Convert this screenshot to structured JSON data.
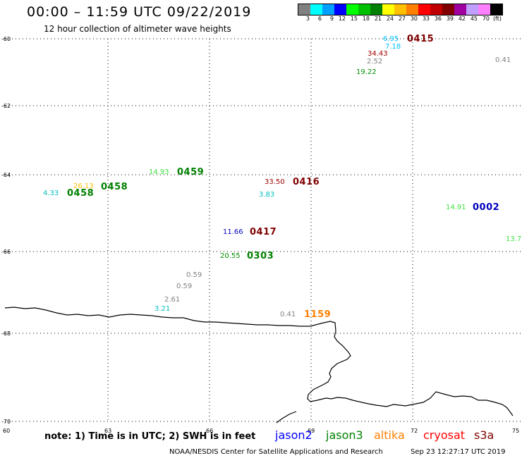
{
  "header": {
    "title": "00:00 – 11:59 UTC 09/22/2019",
    "subtitle": "12 hour collection of altimeter wave heights"
  },
  "colorbar": {
    "colors": [
      "#808080",
      "#00ffff",
      "#00a0ff",
      "#0000ff",
      "#00ff00",
      "#00c000",
      "#008000",
      "#ffff00",
      "#ffc000",
      "#ff8000",
      "#ff0000",
      "#c00000",
      "#800000",
      "#a000a0",
      "#c0a0ff",
      "#ff80ff",
      "#000000"
    ],
    "labels": [
      "3",
      "6",
      "9",
      "12",
      "15",
      "18",
      "21",
      "24",
      "27",
      "30",
      "33",
      "36",
      "39",
      "42",
      "45",
      "70",
      "(ft)"
    ]
  },
  "axes": {
    "y_labels": [
      "-60",
      "-62",
      "-64",
      "-66",
      "-68",
      "-70"
    ],
    "x_labels": [
      "60",
      "63",
      "66",
      "69",
      "72",
      "75"
    ]
  },
  "observations": [
    {
      "text": "6.95",
      "color": "#00c0ff",
      "kind": "val"
    },
    {
      "text": "0415",
      "color": "#800000",
      "kind": "pass"
    },
    {
      "text": "7.18",
      "color": "#00c0ff",
      "kind": "val"
    },
    {
      "text": "34.43",
      "color": "#a00000",
      "kind": "val"
    },
    {
      "text": "2.52",
      "color": "#808080",
      "kind": "val"
    },
    {
      "text": "0.41",
      "color": "#808080",
      "kind": "val"
    },
    {
      "text": "19.22",
      "color": "#009000",
      "kind": "val"
    },
    {
      "text": "14.93",
      "color": "#40e040",
      "kind": "val"
    },
    {
      "text": "0459",
      "color": "#008000",
      "kind": "pass"
    },
    {
      "text": "26.13",
      "color": "#ffc000",
      "kind": "val"
    },
    {
      "text": "0458",
      "color": "#008000",
      "kind": "pass"
    },
    {
      "text": "4.33",
      "color": "#00c0c0",
      "kind": "val"
    },
    {
      "text": "0458",
      "color": "#008000",
      "kind": "pass"
    },
    {
      "text": "33.50",
      "color": "#a00000",
      "kind": "val"
    },
    {
      "text": "0416",
      "color": "#800000",
      "kind": "pass"
    },
    {
      "text": "3.83",
      "color": "#00c0c0",
      "kind": "val"
    },
    {
      "text": "14.91",
      "color": "#40e040",
      "kind": "val"
    },
    {
      "text": "0002",
      "color": "#0000c0",
      "kind": "pass"
    },
    {
      "text": "11.66",
      "color": "#0000c0",
      "kind": "val"
    },
    {
      "text": "0417",
      "color": "#800000",
      "kind": "pass"
    },
    {
      "text": "13.7",
      "color": "#40e040",
      "kind": "val"
    },
    {
      "text": "20.55",
      "color": "#009000",
      "kind": "val"
    },
    {
      "text": "0303",
      "color": "#008000",
      "kind": "pass"
    },
    {
      "text": "0.59",
      "color": "#808080",
      "kind": "val"
    },
    {
      "text": "0.59",
      "color": "#808080",
      "kind": "val"
    },
    {
      "text": "2.61",
      "color": "#808080",
      "kind": "val"
    },
    {
      "text": "3.21",
      "color": "#00c0c0",
      "kind": "val"
    },
    {
      "text": "0.41",
      "color": "#808080",
      "kind": "val"
    },
    {
      "text": "1159",
      "color": "#ff8000",
      "kind": "pass"
    }
  ],
  "footer": {
    "note": "note: 1) Time is in UTC; 2) SWH is in feet",
    "satellites": [
      {
        "name": "jason2",
        "color": "#0000ff"
      },
      {
        "name": "jason3",
        "color": "#008000"
      },
      {
        "name": "altika",
        "color": "#ff8000"
      },
      {
        "name": "cryosat",
        "color": "#ff0000"
      },
      {
        "name": "s3a",
        "color": "#800000"
      }
    ],
    "credit": "NOAA/NESDIS Center for Satellite Applications and Research",
    "timestamp": "Sep 23 12:27:17 UTC 2019"
  }
}
